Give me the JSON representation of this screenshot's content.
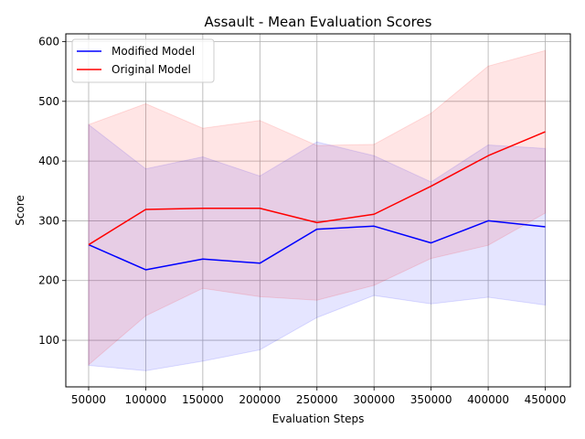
{
  "chart_data": {
    "type": "line",
    "title": "Assault - Mean Evaluation Scores",
    "xlabel": "Evaluation Steps",
    "ylabel": "Score",
    "x": [
      50000,
      100000,
      150000,
      200000,
      250000,
      300000,
      350000,
      400000,
      450000
    ],
    "xlim": [
      30000,
      472000
    ],
    "ylim": [
      22,
      613
    ],
    "xticks": [
      50000,
      100000,
      150000,
      200000,
      250000,
      300000,
      350000,
      400000,
      450000
    ],
    "yticks": [
      100,
      200,
      300,
      400,
      500,
      600
    ],
    "grid": true,
    "legend_position": "top-left",
    "series": [
      {
        "name": "Modified Model",
        "color": "#0000ff",
        "band_fill": "#0000ff",
        "values": [
          260,
          218,
          236,
          229,
          286,
          291,
          263,
          300,
          290
        ],
        "upper": [
          461,
          387,
          407,
          375,
          432,
          409,
          365,
          427,
          421
        ],
        "lower": [
          58,
          49,
          65,
          84,
          138,
          175,
          161,
          172,
          159
        ]
      },
      {
        "name": "Original Model",
        "color": "#ff0000",
        "band_fill": "#ff0000",
        "values": [
          260,
          319,
          321,
          321,
          297,
          311,
          358,
          409,
          449
        ],
        "upper": [
          461,
          496,
          455,
          468,
          426,
          428,
          480,
          559,
          585
        ],
        "lower": [
          59,
          141,
          187,
          173,
          167,
          192,
          237,
          259,
          313
        ]
      }
    ]
  }
}
